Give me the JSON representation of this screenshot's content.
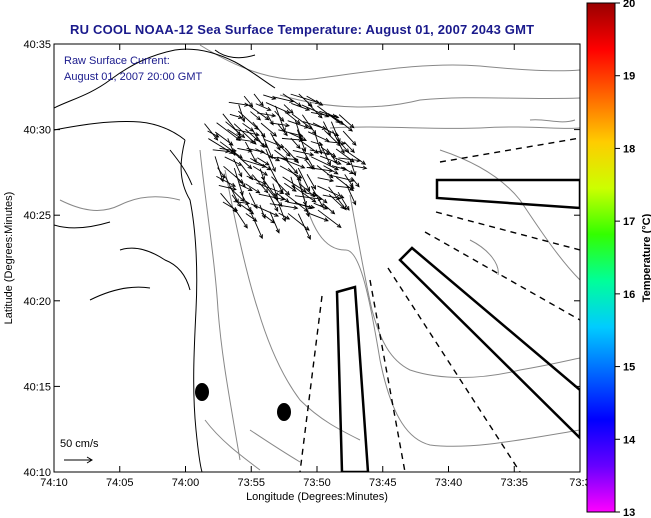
{
  "title": "RU COOL  NOAA-12  Sea Surface Temperature:  August 01, 2007 2043 GMT",
  "annotation": {
    "line1": "Raw Surface Current:",
    "line2": "August 01, 2007 20:00 GMT"
  },
  "scale": {
    "label": "50 cm/s"
  },
  "axes": {
    "xlabel": "Longitude (Degrees:Minutes)",
    "ylabel": "Latitude (Degrees:Minutes)",
    "xticks": [
      "74:10",
      "74:05",
      "74:00",
      "73:55",
      "73:50",
      "73:45",
      "73:40",
      "73:35",
      "73:3"
    ],
    "yticks": [
      "40:35",
      "40:30",
      "40:25",
      "40:20",
      "40:15",
      "40:10"
    ]
  },
  "colorbar": {
    "label": "Temperature (°C)",
    "min": 13,
    "max": 20,
    "ticks": [
      "20",
      "19",
      "18",
      "17",
      "16",
      "15",
      "14",
      "13"
    ],
    "colors": [
      "#ff00ff",
      "#6600ff",
      "#0000ff",
      "#0066ff",
      "#00ccff",
      "#00ff99",
      "#33ff00",
      "#ccff00",
      "#ffcc00",
      "#ff6600",
      "#ff0000",
      "#990000"
    ]
  },
  "map": {
    "background": "#ffffff",
    "land_outline_color": "#000000",
    "isobath_color": "#888888",
    "vector_color": "#000000"
  }
}
